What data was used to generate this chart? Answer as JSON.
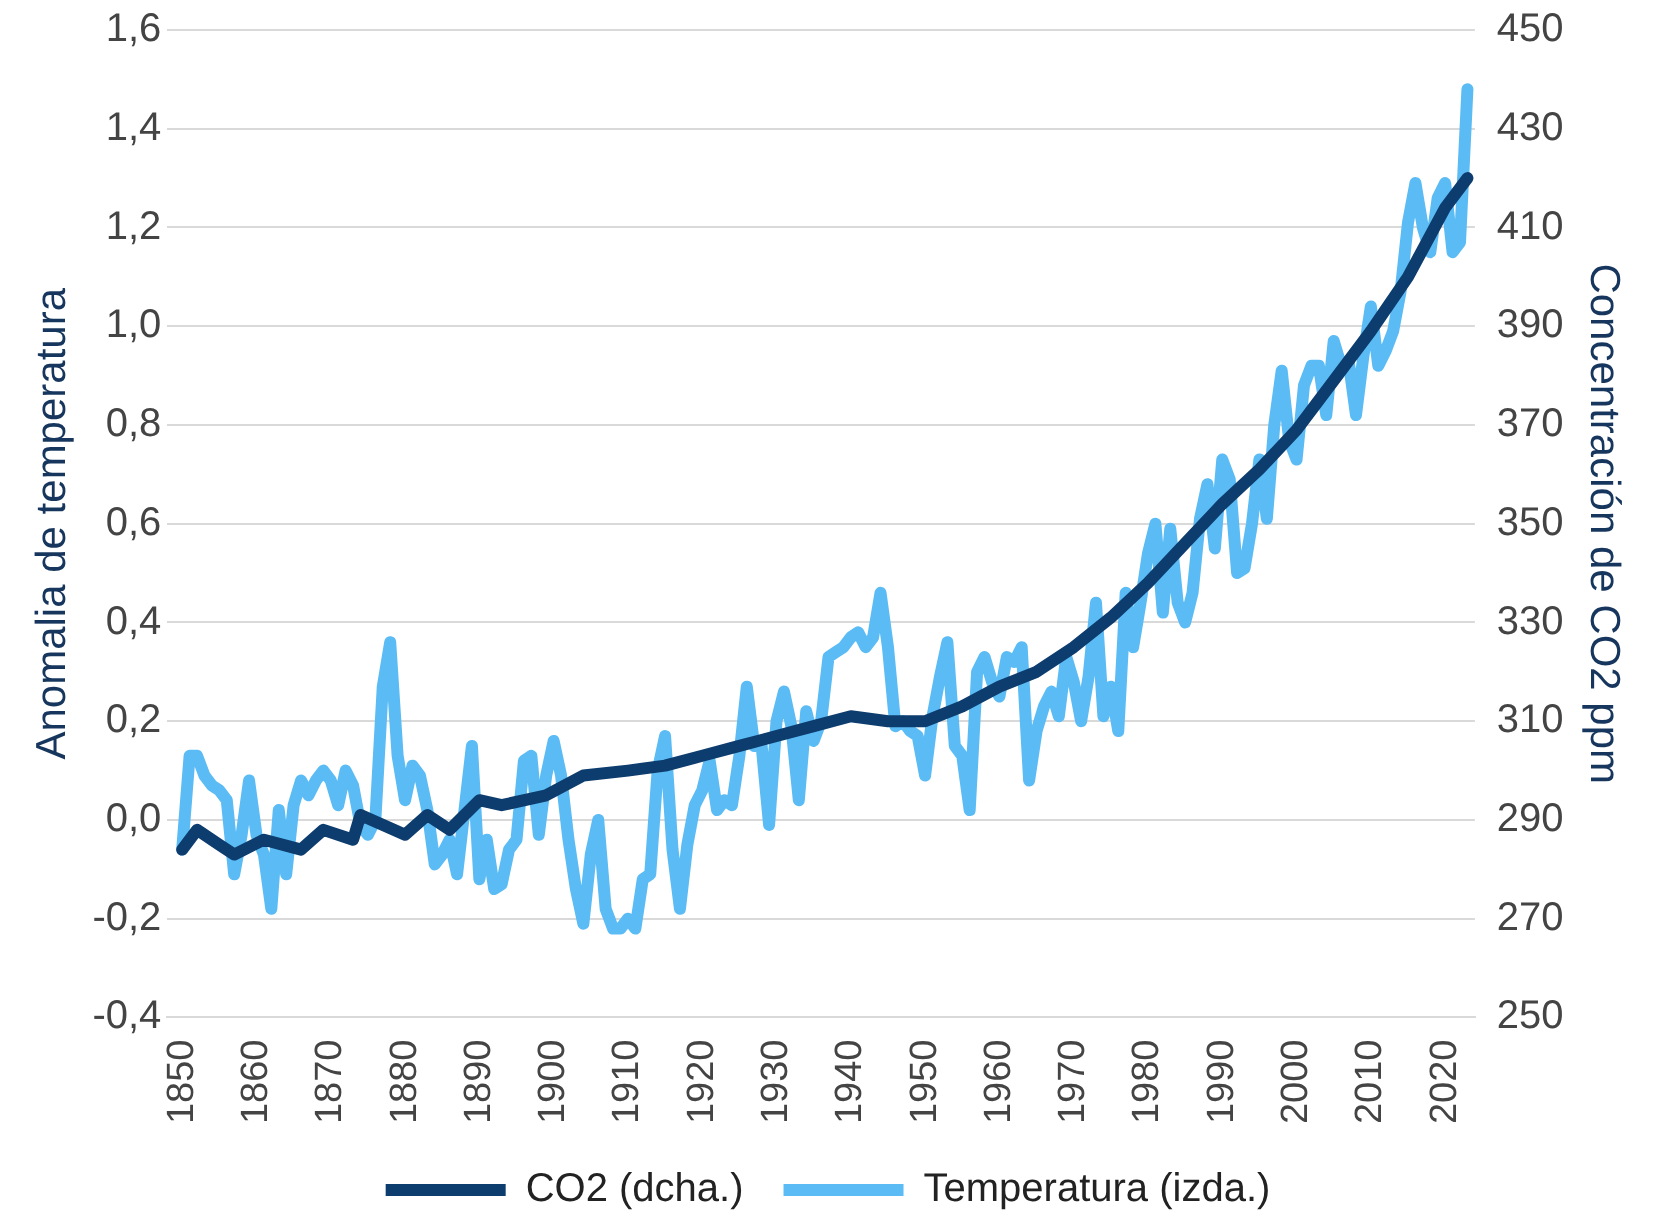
{
  "chart_data": {
    "type": "line",
    "ylabel": "Anomalia de temperatura",
    "y2label": "Concentración de CO2 ppm",
    "xlim": [
      1848,
      2024
    ],
    "xticks": [
      1850,
      1860,
      1870,
      1880,
      1890,
      1900,
      1910,
      1920,
      1930,
      1940,
      1950,
      1960,
      1970,
      1980,
      1990,
      2000,
      2010,
      2020
    ],
    "ylim": [
      -0.4,
      1.6
    ],
    "yticks": [
      {
        "value": -0.4,
        "label": "-0,4"
      },
      {
        "value": -0.2,
        "label": "-0,2"
      },
      {
        "value": 0,
        "label": "0,0"
      },
      {
        "value": 0.2,
        "label": "0,2"
      },
      {
        "value": 0.4,
        "label": "0,4"
      },
      {
        "value": 0.6,
        "label": "0,6"
      },
      {
        "value": 0.8,
        "label": "0,8"
      },
      {
        "value": 1,
        "label": "1,0"
      },
      {
        "value": 1.2,
        "label": "1,2"
      },
      {
        "value": 1.4,
        "label": "1,4"
      },
      {
        "value": 1.6,
        "label": "1,6"
      }
    ],
    "y2lim": [
      250,
      450
    ],
    "y2ticks": [
      250,
      270,
      290,
      310,
      330,
      350,
      370,
      390,
      410,
      430,
      450
    ],
    "grid": "y",
    "legend": "bottom",
    "marker": "none",
    "line_style": "solid",
    "series": [
      {
        "name": "Temperatura (izda.)",
        "color": "#5bbcf5",
        "x": [
          1850,
          1851,
          1852,
          1853,
          1854,
          1855,
          1856,
          1857,
          1858,
          1859,
          1860,
          1861,
          1862,
          1863,
          1864,
          1865,
          1866,
          1867,
          1868,
          1869,
          1870,
          1871,
          1872,
          1873,
          1874,
          1875,
          1876,
          1877,
          1878,
          1879,
          1880,
          1881,
          1882,
          1883,
          1884,
          1885,
          1886,
          1887,
          1888,
          1889,
          1890,
          1891,
          1892,
          1893,
          1894,
          1895,
          1896,
          1897,
          1898,
          1899,
          1900,
          1901,
          1902,
          1903,
          1904,
          1905,
          1906,
          1907,
          1908,
          1909,
          1910,
          1911,
          1912,
          1913,
          1914,
          1915,
          1916,
          1917,
          1918,
          1919,
          1920,
          1921,
          1922,
          1923,
          1924,
          1925,
          1926,
          1927,
          1928,
          1929,
          1930,
          1931,
          1932,
          1933,
          1934,
          1935,
          1936,
          1937,
          1938,
          1939,
          1940,
          1941,
          1942,
          1943,
          1944,
          1945,
          1946,
          1947,
          1948,
          1949,
          1950,
          1951,
          1952,
          1953,
          1954,
          1955,
          1956,
          1957,
          1958,
          1959,
          1960,
          1961,
          1962,
          1963,
          1964,
          1965,
          1966,
          1967,
          1968,
          1969,
          1970,
          1971,
          1972,
          1973,
          1974,
          1975,
          1976,
          1977,
          1978,
          1979,
          1980,
          1981,
          1982,
          1983,
          1984,
          1985,
          1986,
          1987,
          1988,
          1989,
          1990,
          1991,
          1992,
          1993,
          1994,
          1995,
          1996,
          1997,
          1998,
          1999,
          2000,
          2001,
          2002,
          2003,
          2004,
          2005,
          2006,
          2007,
          2008,
          2009,
          2010,
          2011,
          2012,
          2013,
          2014,
          2015,
          2016,
          2017,
          2018,
          2019,
          2020,
          2021,
          2022,
          2023
        ],
        "values": [
          -0.06,
          0.13,
          0.13,
          0.09,
          0.07,
          0.06,
          0.04,
          -0.11,
          -0.03,
          0.08,
          -0.03,
          -0.07,
          -0.18,
          0.02,
          -0.11,
          0.03,
          0.08,
          0.05,
          0.08,
          0.1,
          0.08,
          0.03,
          0.1,
          0.07,
          -0.01,
          -0.03,
          0,
          0.27,
          0.36,
          0.13,
          0.04,
          0.11,
          0.09,
          0.02,
          -0.09,
          -0.07,
          -0.04,
          -0.11,
          0.02,
          0.15,
          -0.12,
          -0.04,
          -0.14,
          -0.13,
          -0.06,
          -0.04,
          0.12,
          0.13,
          -0.03,
          0.09,
          0.16,
          0.09,
          -0.04,
          -0.14,
          -0.21,
          -0.07,
          0,
          -0.18,
          -0.22,
          -0.22,
          -0.2,
          -0.22,
          -0.12,
          -0.11,
          0.1,
          0.17,
          -0.06,
          -0.18,
          -0.05,
          0.03,
          0.06,
          0.12,
          0.02,
          0.04,
          0.03,
          0.13,
          0.27,
          0.15,
          0.15,
          -0.01,
          0.2,
          0.26,
          0.19,
          0.04,
          0.22,
          0.16,
          0.2,
          0.33,
          0.34,
          0.35,
          0.37,
          0.38,
          0.35,
          0.37,
          0.46,
          0.35,
          0.19,
          0.2,
          0.18,
          0.17,
          0.09,
          0.21,
          0.29,
          0.36,
          0.15,
          0.13,
          0.02,
          0.3,
          0.33,
          0.28,
          0.25,
          0.33,
          0.32,
          0.35,
          0.08,
          0.18,
          0.23,
          0.26,
          0.21,
          0.33,
          0.28,
          0.2,
          0.29,
          0.44,
          0.21,
          0.27,
          0.18,
          0.46,
          0.35,
          0.44,
          0.54,
          0.6,
          0.42,
          0.59,
          0.44,
          0.4,
          0.46,
          0.61,
          0.68,
          0.55,
          0.73,
          0.69,
          0.5,
          0.51,
          0.6,
          0.73,
          0.61,
          0.8,
          0.91,
          0.77,
          0.73,
          0.88,
          0.92,
          0.92,
          0.82,
          0.97,
          0.92,
          0.93,
          0.82,
          0.94,
          1.04,
          0.92,
          0.95,
          0.99,
          1.07,
          1.21,
          1.29,
          1.2,
          1.15,
          1.26,
          1.29,
          1.15,
          1.17,
          1.48
        ]
      },
      {
        "name": "CO2 (dcha.)",
        "color": "#0d3c6e",
        "axis": "y2",
        "x": [
          1850,
          1852,
          1855,
          1857,
          1861,
          1866,
          1869,
          1873,
          1874,
          1880,
          1883,
          1886,
          1890,
          1893,
          1899,
          1904,
          1910,
          1915,
          1920,
          1925,
          1930,
          1935,
          1940,
          1945,
          1950,
          1955,
          1960,
          1965,
          1970,
          1975,
          1980,
          1985,
          1990,
          1995,
          2000,
          2005,
          2010,
          2015,
          2020,
          2023
        ],
        "values": [
          284,
          288,
          285,
          283,
          286,
          284,
          288,
          286,
          291,
          287,
          291,
          288,
          294,
          293,
          295,
          299,
          300,
          301,
          303,
          305,
          307,
          309,
          311,
          310,
          310,
          313,
          317,
          320,
          325,
          331,
          338,
          346,
          354,
          361,
          369,
          379,
          389,
          400,
          414,
          420
        ]
      }
    ]
  }
}
